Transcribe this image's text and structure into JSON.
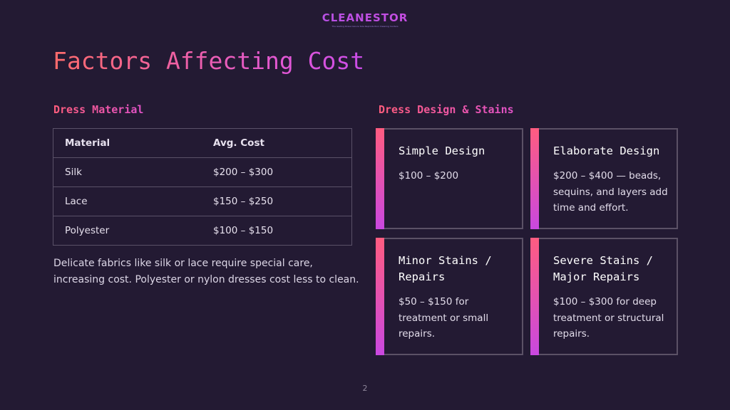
{
  "logo": {
    "name": "CLEANESTOR",
    "tagline": "The leading Dress Care & Sole Reproduction Cleaning Centers"
  },
  "slide": {
    "title": "Factors Affecting Cost",
    "page_number": "2"
  },
  "material_section": {
    "label": "Dress Material",
    "table": {
      "headers": [
        "Material",
        "Avg. Cost"
      ],
      "rows": [
        [
          "Silk",
          "$200 – $300"
        ],
        [
          "Lace",
          "$150 – $250"
        ],
        [
          "Polyester",
          "$100 – $150"
        ]
      ]
    },
    "note": "Delicate fabrics like silk or lace require special care, increasing cost. Polyester or nylon dresses cost less to clean."
  },
  "design_section": {
    "label": "Dress Design & Stains",
    "cards": [
      {
        "title": "Simple Design",
        "body": "$100 – $200"
      },
      {
        "title": "Elaborate Design",
        "body": "$200 – $400 — beads, sequins, and layers add time and effort."
      },
      {
        "title": "Minor Stains / Repairs",
        "body": "$50 – $150 for treatment or small repairs."
      },
      {
        "title": "Severe Stains / Major Repairs",
        "body": "$100 – $300 for deep treatment or structural repairs."
      }
    ]
  },
  "colors": {
    "background": "#231a33",
    "accent_start": "#ff5c7c",
    "accent_end": "#c948e0",
    "border": "#5b5166"
  }
}
